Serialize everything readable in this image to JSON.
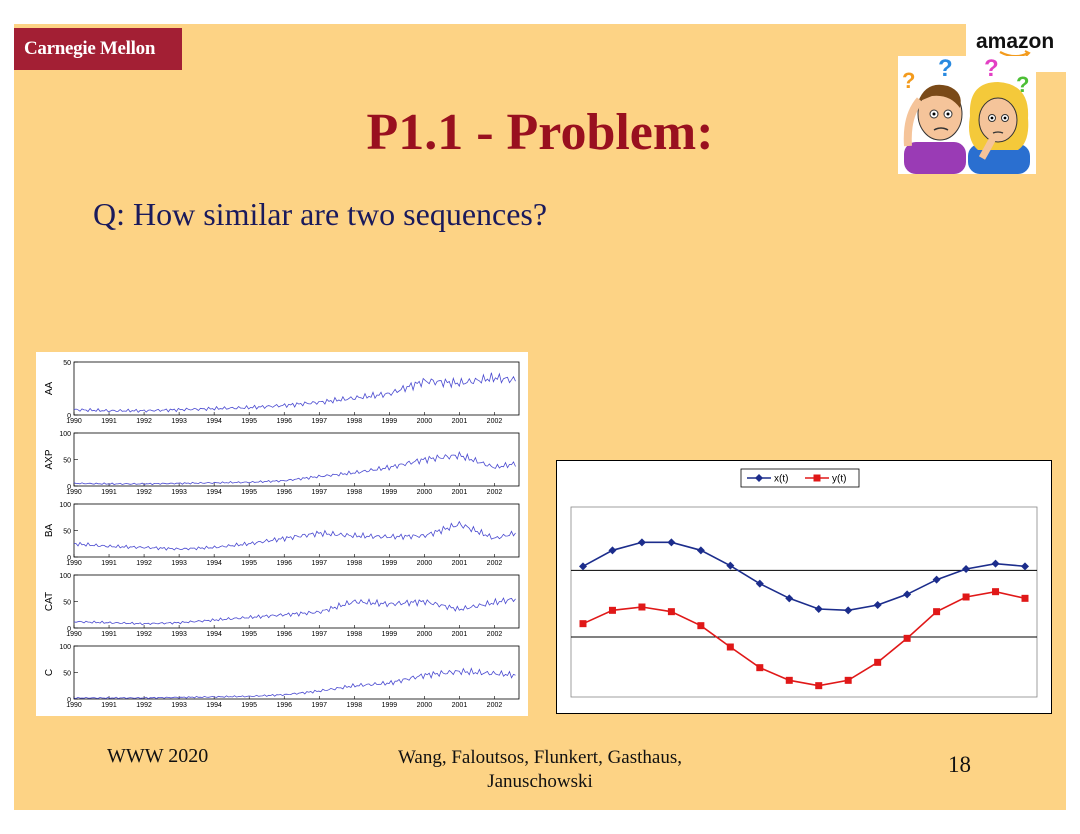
{
  "header": {
    "cmu_logo": "Carnegie Mellon",
    "amazon_logo": "amazon"
  },
  "slide": {
    "title": "P1.1 - Problem:",
    "question": "Q: How similar are two sequences?"
  },
  "footer": {
    "left": "WWW 2020",
    "authors_line1": "Wang, Faloutsos, Flunkert, Gasthaus,",
    "authors_line2": "Januschowski",
    "page": "18"
  },
  "colors": {
    "slide_background": "#fdd385",
    "title": "#99101f",
    "question": "#1a1a5c",
    "cmu_red": "#a31f34",
    "stock_line": "#4a4ad0",
    "x_series": "#1c2d8c",
    "y_series": "#e01818"
  },
  "icons": {
    "clipart": "two-confused-people-icon"
  },
  "chart_data": [
    {
      "type": "line",
      "panels": [
        {
          "ylabel": "AA",
          "ylim": [
            0,
            50
          ],
          "yticks": [
            "0",
            "50"
          ],
          "x": [
            1990,
            1991,
            1992,
            1993,
            1994,
            1995,
            1996,
            1997,
            1998,
            1999,
            2000,
            2001,
            2002,
            2002.6
          ],
          "values": [
            5,
            4,
            4,
            5,
            6,
            7,
            9,
            12,
            16,
            20,
            32,
            30,
            35,
            33
          ]
        },
        {
          "ylabel": "AXP",
          "ylim": [
            0,
            100
          ],
          "yticks": [
            "0",
            "50",
            "100"
          ],
          "x": [
            1990,
            1991,
            1992,
            1993,
            1994,
            1995,
            1996,
            1997,
            1998,
            1999,
            2000,
            2001,
            2002,
            2002.6
          ],
          "values": [
            5,
            4,
            4,
            5,
            6,
            7,
            10,
            18,
            25,
            35,
            50,
            58,
            35,
            42
          ]
        },
        {
          "ylabel": "BA",
          "ylim": [
            0,
            100
          ],
          "yticks": [
            "0",
            "50",
            "100"
          ],
          "x": [
            1990,
            1991,
            1992,
            1993,
            1994,
            1995,
            1996,
            1997,
            1998,
            1999,
            2000,
            2001,
            2002,
            2002.6
          ],
          "values": [
            25,
            20,
            18,
            15,
            18,
            25,
            35,
            45,
            40,
            38,
            40,
            62,
            35,
            45
          ]
        },
        {
          "ylabel": "CAT",
          "ylim": [
            0,
            100
          ],
          "yticks": [
            "0",
            "50",
            "100"
          ],
          "x": [
            1990,
            1991,
            1992,
            1993,
            1994,
            1995,
            1996,
            1997,
            1998,
            1999,
            2000,
            2001,
            2002,
            2002.6
          ],
          "values": [
            12,
            10,
            8,
            10,
            15,
            20,
            25,
            30,
            50,
            45,
            50,
            35,
            48,
            55
          ]
        },
        {
          "ylabel": "C",
          "ylim": [
            0,
            100
          ],
          "yticks": [
            "0",
            "50",
            "100"
          ],
          "x": [
            1990,
            1991,
            1992,
            1993,
            1994,
            1995,
            1996,
            1997,
            1998,
            1999,
            2000,
            2001,
            2002,
            2002.6
          ],
          "values": [
            2,
            2,
            2,
            3,
            4,
            5,
            8,
            15,
            25,
            30,
            45,
            52,
            48,
            45
          ]
        }
      ],
      "xticks": [
        "1990",
        "1991",
        "1992",
        "1993",
        "1994",
        "1995",
        "1996",
        "1997",
        "1998",
        "1999",
        "2000",
        "2001",
        "2002"
      ],
      "xlim": [
        1990,
        2002.7
      ]
    },
    {
      "type": "line",
      "legend_position": "top-center",
      "grid": false,
      "reference_lines": [
        0,
        -1
      ],
      "ylim": [
        -1.9,
        0.95
      ],
      "x": [
        1,
        2,
        3,
        4,
        5,
        6,
        7,
        8,
        9,
        10,
        11,
        12,
        13,
        14,
        15,
        16
      ],
      "series": [
        {
          "name": "x(t)",
          "marker": "diamond",
          "values": [
            0.06,
            0.3,
            0.42,
            0.42,
            0.3,
            0.07,
            -0.2,
            -0.42,
            -0.58,
            -0.6,
            -0.52,
            -0.36,
            -0.14,
            0.02,
            0.1,
            0.06
          ]
        },
        {
          "name": "y(t)",
          "marker": "square",
          "values": [
            -0.8,
            -0.6,
            -0.55,
            -0.62,
            -0.83,
            -1.15,
            -1.46,
            -1.65,
            -1.73,
            -1.65,
            -1.38,
            -1.02,
            -0.62,
            -0.4,
            -0.32,
            -0.42
          ]
        }
      ]
    }
  ]
}
